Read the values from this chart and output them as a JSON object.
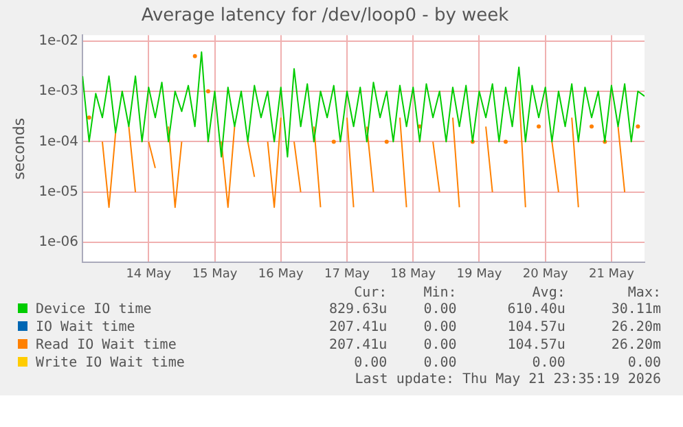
{
  "chart_data": {
    "type": "line",
    "title": "Average latency for /dev/loop0 - by week",
    "ylabel": "seconds",
    "log": "y",
    "grid": true,
    "legend": "bottom",
    "marker": "none",
    "line_style": "solid",
    "x": [
      "2026-05-13T12:00",
      "2026-05-13T14:24",
      "2026-05-13T16:48",
      "2026-05-13T19:12",
      "2026-05-13T21:36",
      "2026-05-14T00:00",
      "2026-05-14T02:24",
      "2026-05-14T04:48",
      "2026-05-14T07:12",
      "2026-05-14T09:36",
      "2026-05-14T12:00",
      "2026-05-14T14:24",
      "2026-05-14T16:48",
      "2026-05-14T19:12",
      "2026-05-14T21:36",
      "2026-05-15T00:00",
      "2026-05-15T02:24",
      "2026-05-15T04:48",
      "2026-05-15T07:12",
      "2026-05-15T09:36",
      "2026-05-15T12:00",
      "2026-05-15T14:24",
      "2026-05-15T16:48",
      "2026-05-15T19:12",
      "2026-05-15T21:36",
      "2026-05-16T00:00",
      "2026-05-16T02:24",
      "2026-05-16T04:48",
      "2026-05-16T07:12",
      "2026-05-16T09:36",
      "2026-05-16T12:00",
      "2026-05-16T14:24",
      "2026-05-16T16:48",
      "2026-05-16T19:12",
      "2026-05-16T21:36",
      "2026-05-17T00:00",
      "2026-05-17T02:24",
      "2026-05-17T04:48",
      "2026-05-17T07:12",
      "2026-05-17T09:36",
      "2026-05-17T12:00",
      "2026-05-17T14:24",
      "2026-05-17T16:48",
      "2026-05-17T19:12",
      "2026-05-17T21:36",
      "2026-05-18T00:00",
      "2026-05-18T02:24",
      "2026-05-18T04:48",
      "2026-05-18T07:12",
      "2026-05-18T09:36",
      "2026-05-18T12:00",
      "2026-05-18T14:24",
      "2026-05-18T16:48",
      "2026-05-18T19:12",
      "2026-05-18T21:36",
      "2026-05-19T00:00",
      "2026-05-19T02:24",
      "2026-05-19T04:48",
      "2026-05-19T07:12",
      "2026-05-19T09:36",
      "2026-05-19T12:00",
      "2026-05-19T14:24",
      "2026-05-19T16:48",
      "2026-05-19T19:12",
      "2026-05-19T21:36",
      "2026-05-20T00:00",
      "2026-05-20T02:24",
      "2026-05-20T04:48",
      "2026-05-20T07:12",
      "2026-05-20T09:36",
      "2026-05-20T12:00",
      "2026-05-20T14:24",
      "2026-05-20T16:48",
      "2026-05-20T19:12",
      "2026-05-20T21:36",
      "2026-05-21T00:00",
      "2026-05-21T02:24",
      "2026-05-21T04:48",
      "2026-05-21T07:12",
      "2026-05-21T09:36",
      "2026-05-21T12:00",
      "2026-05-21T14:24",
      "2026-05-21T16:48",
      "2026-05-21T19:12",
      "2026-05-21T21:36",
      "2026-05-22T00:00"
    ],
    "xlim": [
      "2026-05-13T12:00",
      "2026-05-22T00:00"
    ],
    "xticks": [
      {
        "value": "2026-05-14T12:00",
        "label": "14 May"
      },
      {
        "value": "2026-05-15T12:00",
        "label": "15 May"
      },
      {
        "value": "2026-05-16T12:00",
        "label": "16 May"
      },
      {
        "value": "2026-05-17T12:00",
        "label": "17 May"
      },
      {
        "value": "2026-05-18T12:00",
        "label": "18 May"
      },
      {
        "value": "2026-05-19T12:00",
        "label": "19 May"
      },
      {
        "value": "2026-05-20T12:00",
        "label": "20 May"
      },
      {
        "value": "2026-05-21T12:00",
        "label": "21 May"
      }
    ],
    "ylim": [
      4e-07,
      0.013
    ],
    "yticks": [
      {
        "value": 1e-06,
        "label": "1e-06"
      },
      {
        "value": 1e-05,
        "label": "1e-05"
      },
      {
        "value": 0.0001,
        "label": "1e-04"
      },
      {
        "value": 0.001,
        "label": "1e-03"
      },
      {
        "value": 0.01,
        "label": "1e-02"
      }
    ],
    "series": [
      {
        "name": "Device IO time",
        "color": "#00cc00",
        "values": [
          0.002,
          0.0001,
          0.0009,
          0.0003,
          0.002,
          0.00015,
          0.001,
          0.0002,
          0.002,
          0.0001,
          0.0012,
          0.0003,
          0.0015,
          0.0001,
          0.001,
          0.0004,
          0.0013,
          0.0002,
          0.006,
          0.0001,
          0.001,
          5e-05,
          0.0012,
          0.0002,
          0.001,
          0.0001,
          0.0013,
          0.0003,
          0.001,
          0.0001,
          0.0012,
          5e-05,
          0.0028,
          0.0002,
          0.0014,
          0.0001,
          0.001,
          0.0003,
          0.0013,
          0.0001,
          0.001,
          0.0002,
          0.0012,
          0.0001,
          0.0015,
          0.0003,
          0.001,
          0.0001,
          0.0013,
          0.0002,
          0.0012,
          0.0001,
          0.0014,
          0.0003,
          0.001,
          0.0001,
          0.0012,
          0.0002,
          0.0013,
          0.0001,
          0.001,
          0.0003,
          0.0014,
          0.0001,
          0.0012,
          0.0002,
          0.003,
          0.0001,
          0.0013,
          0.0003,
          0.0012,
          0.0001,
          0.001,
          0.0002,
          0.0014,
          0.0001,
          0.0012,
          0.0003,
          0.001,
          0.0001,
          0.0013,
          0.0002,
          0.0014,
          0.0001,
          0.001,
          0.0008
        ]
      },
      {
        "name": "IO Wait time",
        "color": "#0066b3",
        "values": [
          null,
          null,
          null,
          null,
          null,
          null,
          null,
          null,
          null,
          null,
          null,
          null,
          null,
          null,
          null,
          null,
          null,
          null,
          null,
          null,
          null,
          null,
          null,
          null,
          null,
          null,
          null,
          null,
          null,
          null,
          null,
          null,
          null,
          null,
          null,
          null,
          null,
          null,
          null,
          null,
          null,
          null,
          null,
          null,
          null,
          null,
          null,
          null,
          null,
          null,
          null,
          null,
          null,
          null,
          null,
          null,
          null,
          null,
          null,
          null,
          null,
          null,
          null,
          null,
          null,
          null,
          null,
          null,
          null,
          null,
          null,
          null,
          null,
          null,
          null,
          null,
          null,
          null,
          null,
          null,
          null,
          null,
          null,
          null,
          null,
          null
        ]
      },
      {
        "name": "Read IO Wait time",
        "color": "#ff8000",
        "values": [
          null,
          0.0003,
          null,
          0.0001,
          5e-06,
          0.00015,
          null,
          0.0002,
          1e-05,
          null,
          0.0001,
          3e-05,
          null,
          0.0002,
          5e-06,
          0.0001,
          null,
          0.005,
          null,
          0.001,
          null,
          0.0001,
          5e-06,
          0.0002,
          null,
          0.0001,
          2e-05,
          null,
          0.0001,
          5e-06,
          0.0003,
          null,
          0.0001,
          1e-05,
          null,
          0.0002,
          5e-06,
          null,
          0.0001,
          null,
          0.0003,
          5e-06,
          null,
          0.0002,
          1e-05,
          null,
          0.0001,
          null,
          0.0003,
          5e-06,
          null,
          0.0002,
          null,
          0.0001,
          1e-05,
          null,
          0.0003,
          5e-06,
          null,
          0.0001,
          null,
          0.0002,
          1e-05,
          null,
          0.0001,
          null,
          0.001,
          5e-06,
          null,
          0.0002,
          null,
          0.0001,
          1e-05,
          null,
          0.0003,
          5e-06,
          null,
          0.0002,
          null,
          0.0001,
          null,
          0.0002,
          1e-05,
          null,
          0.0002,
          null
        ]
      },
      {
        "name": "Write IO Wait time",
        "color": "#ffcc00",
        "values": [
          null,
          null,
          null,
          null,
          null,
          null,
          null,
          null,
          null,
          null,
          null,
          null,
          null,
          null,
          null,
          null,
          null,
          null,
          null,
          null,
          null,
          null,
          null,
          null,
          null,
          null,
          null,
          null,
          null,
          null,
          null,
          null,
          null,
          null,
          null,
          null,
          null,
          null,
          null,
          null,
          null,
          null,
          null,
          null,
          null,
          null,
          null,
          null,
          null,
          null,
          null,
          null,
          null,
          null,
          null,
          null,
          null,
          null,
          null,
          null,
          null,
          null,
          null,
          null,
          null,
          null,
          null,
          null,
          null,
          null,
          null,
          null,
          null,
          null,
          null,
          null,
          null,
          null,
          null,
          null,
          null,
          null,
          null,
          null,
          null,
          null
        ]
      }
    ],
    "annotations": [
      "Cur:",
      "Min:",
      "Avg:",
      "Max:",
      "829.63u",
      "0.00",
      "610.40u",
      "30.11m",
      "207.41u",
      "0.00",
      "104.57u",
      "26.20m",
      "207.41u",
      "0.00",
      "104.57u",
      "26.20m",
      "0.00",
      "0.00",
      "0.00",
      "0.00",
      "Last update: Thu May 21 23:35:19 2026"
    ]
  }
}
